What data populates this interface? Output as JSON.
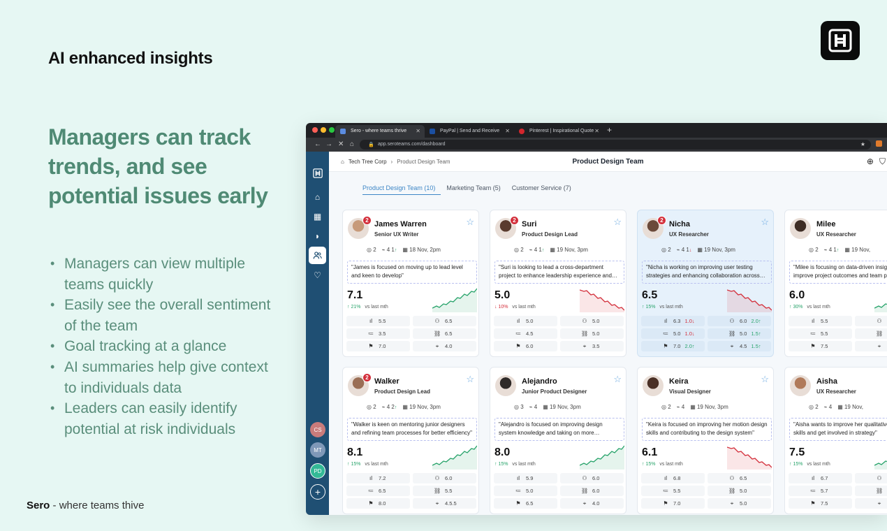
{
  "slide": {
    "title": "AI enhanced insights",
    "headline": "Managers can track trends, and see potential issues early",
    "bullets": [
      "Managers can view multiple teams quickly",
      "Easily see the overall sentiment of the team",
      "Goal tracking at a glance",
      "AI summaries help give context to individuals data",
      "Leaders can easily identify potential at risk individuals"
    ],
    "footer_brand": "Sero",
    "footer_tagline": " - where teams thive"
  },
  "browser": {
    "tabs": [
      {
        "label": "Sero - where teams thrive",
        "active": true,
        "favicon_color": "#5b8ce0"
      },
      {
        "label": "PayPal | Send and Receive",
        "active": false,
        "favicon_color": "#1b4fa0"
      },
      {
        "label": "Pinterest | Inspirational Quote",
        "active": false,
        "favicon_color": "#d3262d"
      }
    ],
    "url": "app.seroteams.com/dashboard"
  },
  "app": {
    "breadcrumb": [
      "Tech Tree Corp",
      "Product Design Team"
    ],
    "page_title": "Product Design Team",
    "team_tabs": [
      {
        "label": "Product Design Team (10)",
        "active": true
      },
      {
        "label": "Marketing Team (5)",
        "active": false
      },
      {
        "label": "Customer Service (7)",
        "active": false
      }
    ],
    "sidebar_avatars": [
      {
        "initials": "CS",
        "color": "#c97b7b"
      },
      {
        "initials": "MT",
        "color": "#7f98b8"
      },
      {
        "initials": "PD",
        "color": "#33b996"
      }
    ],
    "people": [
      {
        "name": "James Warren",
        "role": "Senior UX Writer",
        "badge": "2",
        "goals": "2",
        "pulse": "4",
        "pulse_delta": "1",
        "pulse_dir": "up",
        "date": "18 Nov, 2pm",
        "summary": "\"James is focused on moving up to lead level and keen to develop\"",
        "score": "7.1",
        "trend_pct": "21%",
        "trend_dir": "up",
        "trend_label": "vs last mth",
        "spark_dir": "up",
        "metrics": [
          "5.5",
          "6.5",
          "3.5",
          "6.5",
          "7.0",
          "4.0"
        ],
        "deltas": [
          "",
          "",
          "",
          "",
          "",
          ""
        ],
        "avatar_color": "#c79a7a",
        "highlight": false
      },
      {
        "name": "Suri",
        "role": "Product Design Lead",
        "badge": "2",
        "goals": "2",
        "pulse": "4",
        "pulse_delta": "1",
        "pulse_dir": "up",
        "date": "19 Nov, 3pm",
        "summary": "\"Suri is looking to lead a cross-department project to enhance leadership experience and take on more responsibility\"",
        "score": "5.0",
        "trend_pct": "10%",
        "trend_dir": "down",
        "trend_label": "vs last mth",
        "spark_dir": "down",
        "metrics": [
          "5.0",
          "5.0",
          "4.5",
          "5.0",
          "6.0",
          "3.5"
        ],
        "deltas": [
          "",
          "",
          "",
          "",
          "",
          ""
        ],
        "avatar_color": "#5a3b2e",
        "highlight": false
      },
      {
        "name": "Nicha",
        "role": "UX Researcher",
        "badge": "2",
        "goals": "2",
        "pulse": "4",
        "pulse_delta": "1",
        "pulse_dir": "down",
        "date": "19 Nov, 3pm",
        "summary": "\"Nicha is working on improving user testing strategies and enhancing collaboration across teams\"",
        "score": "6.5",
        "trend_pct": "15%",
        "trend_dir": "up",
        "trend_label": "vs last mth",
        "spark_dir": "down",
        "metrics": [
          "6.3",
          "6.0",
          "5.0",
          "5.0",
          "7.0",
          "4.5"
        ],
        "deltas": [
          "1.0↓",
          "2.0↑",
          "1.0↓",
          "1.5↑",
          "2.0↑",
          "1.5↑"
        ],
        "avatar_color": "#6b4a3a",
        "highlight": true
      },
      {
        "name": "Milee",
        "role": "UX Researcher",
        "badge": "",
        "goals": "2",
        "pulse": "4",
        "pulse_delta": "1",
        "pulse_dir": "up",
        "date": "19 Nov,",
        "summary": "\"Milee is focusing on data-driven insights to improve project outcomes and team processes\"",
        "score": "6.0",
        "trend_pct": "30%",
        "trend_dir": "up",
        "trend_label": "vs last mth",
        "spark_dir": "up",
        "metrics": [
          "5.5",
          "",
          "5.5",
          "",
          "7.5",
          ""
        ],
        "deltas": [
          "",
          "",
          "",
          "",
          "",
          ""
        ],
        "avatar_color": "#3e2d25",
        "highlight": false
      },
      {
        "name": "Walker",
        "role": "Product Design Lead",
        "badge": "2",
        "goals": "2",
        "pulse": "4",
        "pulse_delta": "2",
        "pulse_dir": "up",
        "date": "19 Nov, 3pm",
        "summary": "\"Walker is keen on mentoring junior designers and refining team processes for better efficiency\"",
        "score": "8.1",
        "trend_pct": "15%",
        "trend_dir": "up",
        "trend_label": "vs last mth",
        "spark_dir": "up",
        "metrics": [
          "7.2",
          "6.0",
          "6.5",
          "5.5",
          "8.0",
          "4.5.5"
        ],
        "deltas": [
          "",
          "",
          "",
          "",
          "",
          ""
        ],
        "avatar_color": "#9a6e55",
        "highlight": false
      },
      {
        "name": "Alejandro",
        "role": "Junior Product Designer",
        "badge": "",
        "goals": "3",
        "pulse": "4",
        "pulse_delta": "",
        "pulse_dir": "up",
        "date": "19 Nov, 3pm",
        "summary": "\"Alejandro is focused on improving design system knowledge and taking on more responsibility\"",
        "score": "8.0",
        "trend_pct": "15%",
        "trend_dir": "up",
        "trend_label": "vs last mth",
        "spark_dir": "up",
        "metrics": [
          "5.9",
          "6.0",
          "5.0",
          "6.0",
          "6.5",
          "4.0"
        ],
        "deltas": [
          "",
          "",
          "",
          "",
          "",
          ""
        ],
        "avatar_color": "#2f2a28",
        "highlight": false
      },
      {
        "name": "Keira",
        "role": "Visual Designer",
        "badge": "",
        "goals": "2",
        "pulse": "4",
        "pulse_delta": "",
        "pulse_dir": "up",
        "date": "19 Nov, 3pm",
        "summary": "\"Keira is focused on improving her motion design skills and contributing to the design system\"",
        "score": "6.1",
        "trend_pct": "15%",
        "trend_dir": "up",
        "trend_label": "vs last mth",
        "spark_dir": "down",
        "metrics": [
          "6.8",
          "6.5",
          "5.5",
          "5.0",
          "7.0",
          "5.0"
        ],
        "deltas": [
          "",
          "",
          "",
          "",
          "",
          ""
        ],
        "avatar_color": "#4a3026",
        "highlight": false
      },
      {
        "name": "Aisha",
        "role": "UX Researcher",
        "badge": "",
        "goals": "2",
        "pulse": "4",
        "pulse_delta": "",
        "pulse_dir": "up",
        "date": "19 Nov,",
        "summary": "\"Aisha wants to improve her qualitative research skills and get involved in strategy\"",
        "score": "7.5",
        "trend_pct": "15%",
        "trend_dir": "up",
        "trend_label": "vs last mth",
        "spark_dir": "up",
        "metrics": [
          "6.7",
          "",
          "5.7",
          "",
          "7.5",
          ""
        ],
        "deltas": [
          "",
          "",
          "",
          "",
          "",
          ""
        ],
        "avatar_color": "#b07a5a",
        "highlight": false
      }
    ]
  },
  "icons": {
    "metric_icons": [
      "bar-chart-icon",
      "people-icon",
      "checklist-icon",
      "link-icon",
      "trophy-icon",
      "tag-icon"
    ],
    "sidebar": [
      "home-icon",
      "calendar-icon",
      "feedback-icon",
      "team-icon",
      "heart-icon"
    ]
  },
  "colors": {
    "brand_green": "#4f8a74",
    "sidebar_blue": "#1f4f73",
    "up": "#27a36a",
    "down": "#d32f3b",
    "accent_blue": "#3d86c6"
  }
}
